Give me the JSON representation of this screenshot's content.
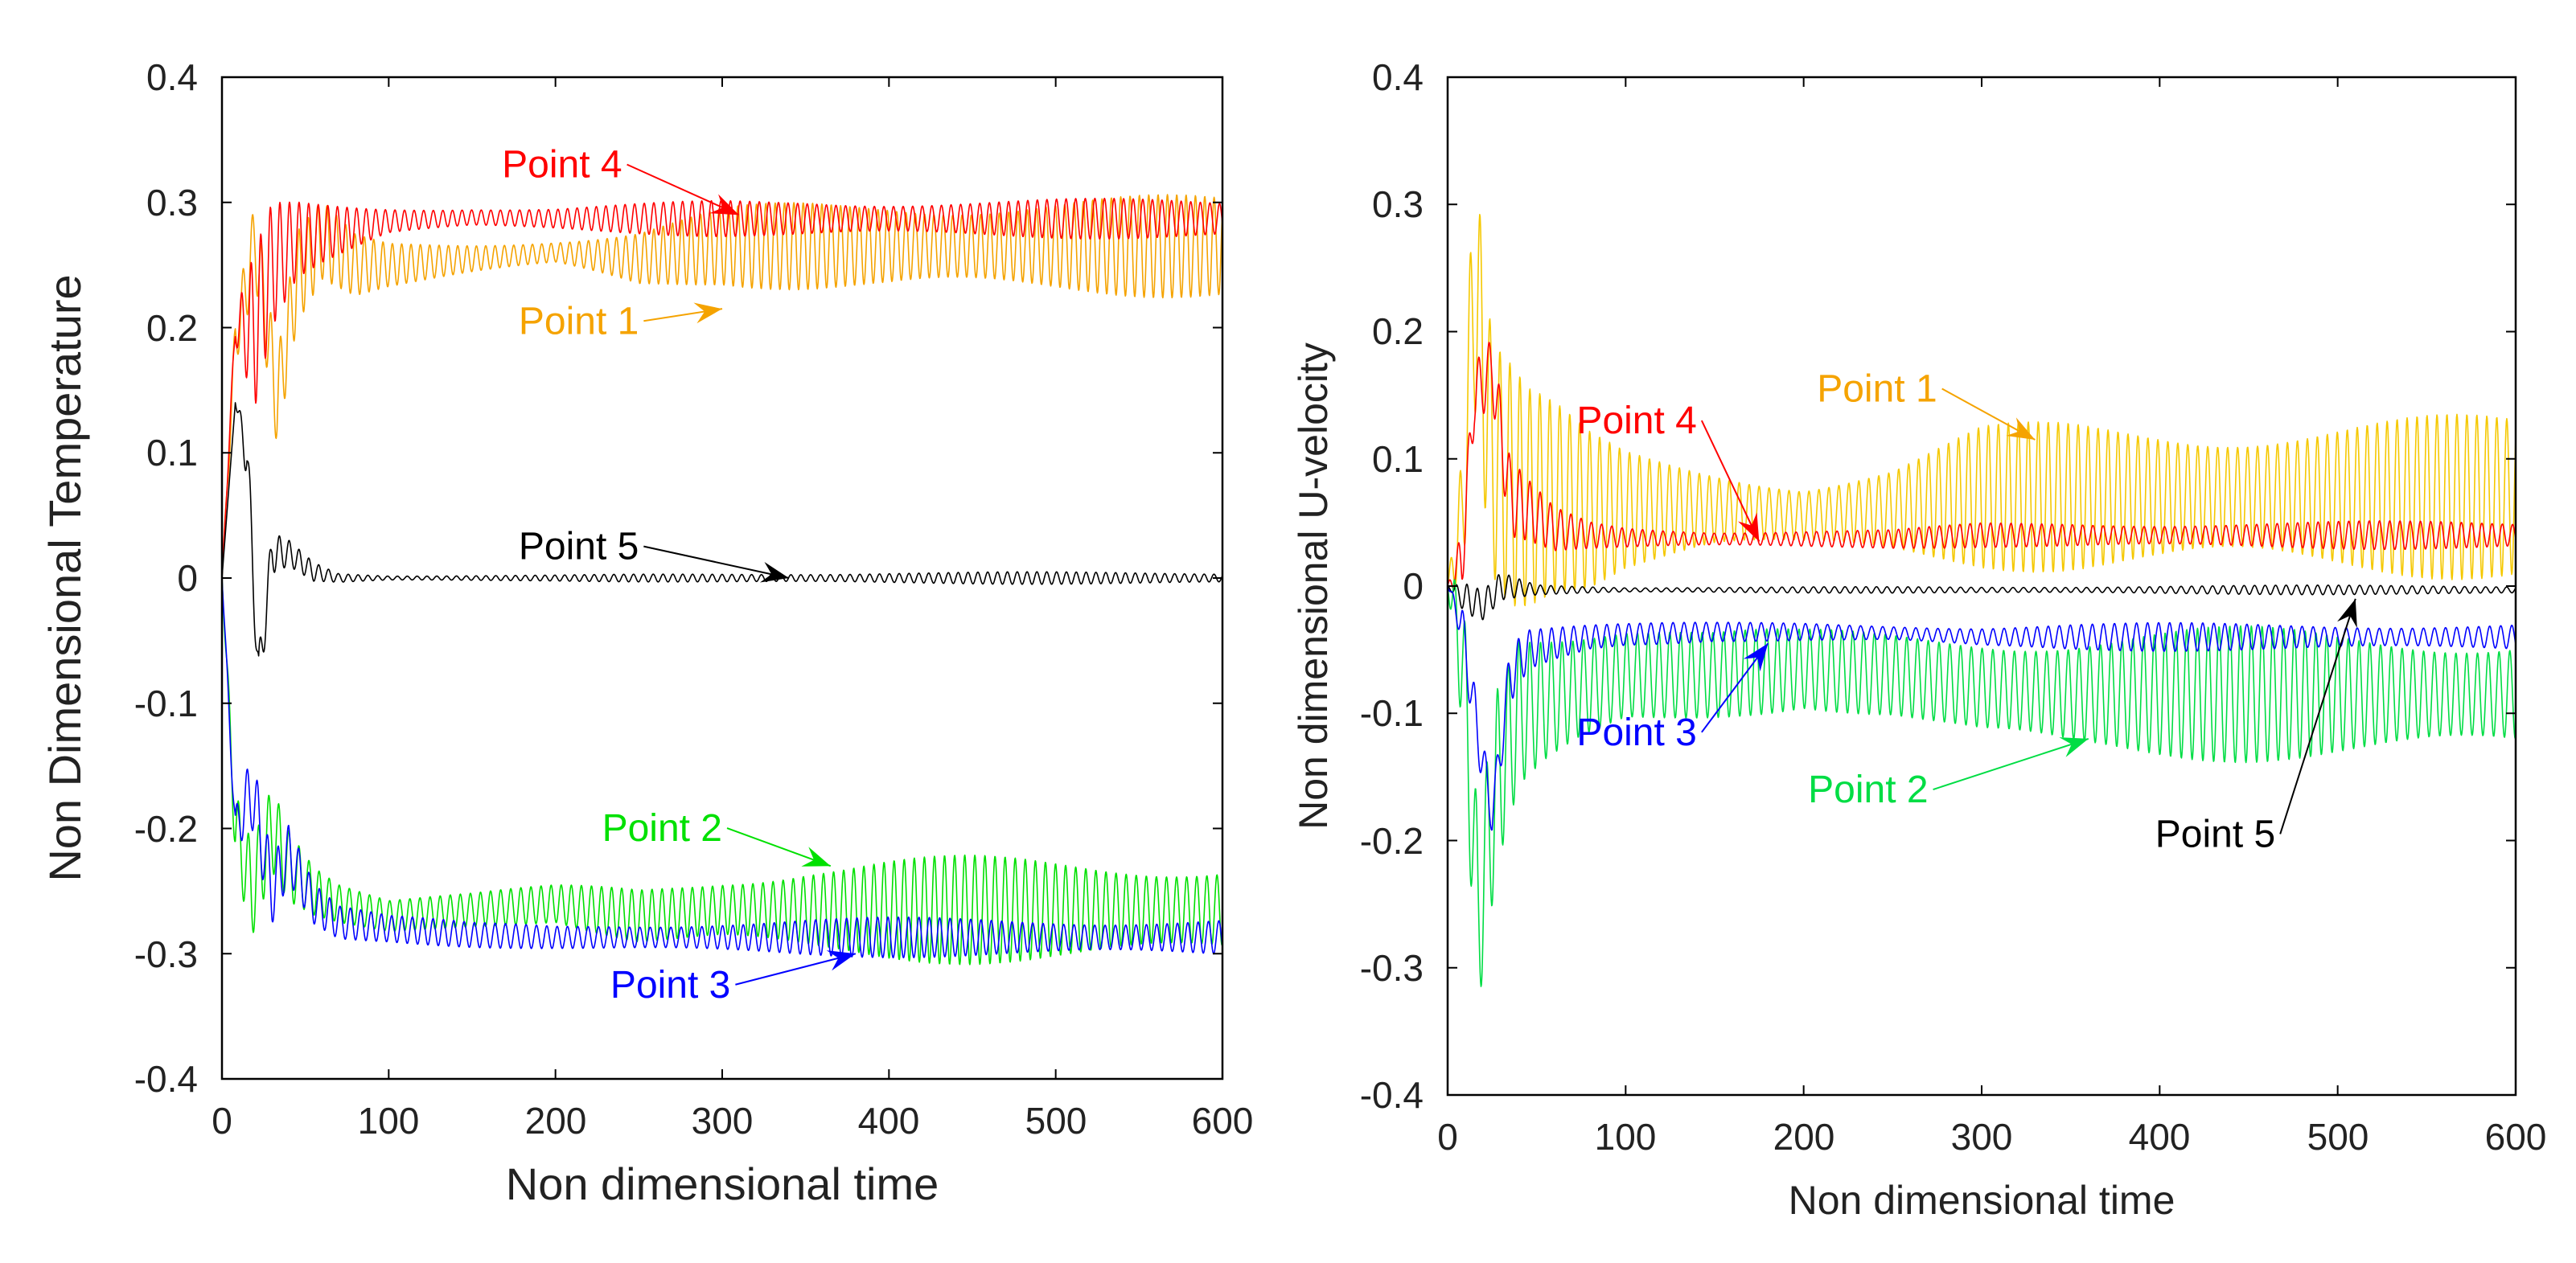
{
  "chart_data": [
    {
      "type": "line",
      "id": "temperature",
      "title": "",
      "xlabel": "Non dimensional time",
      "ylabel": "Non Dimensional Temperature",
      "xlim": [
        0,
        600
      ],
      "ylim": [
        -0.4,
        0.4
      ],
      "xticks": [
        "0",
        "100",
        "200",
        "300",
        "400",
        "500",
        "600"
      ],
      "yticks": [
        "-0.4",
        "-0.3",
        "-0.2",
        "-0.1",
        "0",
        "0.1",
        "0.2",
        "0.3",
        "0.4"
      ],
      "grid": false,
      "series": [
        {
          "name": "Point 1",
          "color": "#f5a300",
          "x": [
            0,
            8,
            20,
            33,
            45,
            60,
            80,
            100,
            150,
            200,
            250,
            300,
            350,
            400,
            450,
            500,
            550,
            600
          ],
          "y": [
            0.0,
            0.19,
            0.27,
            0.14,
            0.24,
            0.27,
            0.25,
            0.25,
            0.255,
            0.26,
            0.255,
            0.265,
            0.265,
            0.265,
            0.265,
            0.265,
            0.265,
            0.265
          ],
          "amp": [
            0,
            0.02,
            0.03,
            0.03,
            0.03,
            0.025,
            0.02,
            0.015,
            0.012,
            0.01,
            0.02,
            0.025,
            0.03,
            0.033,
            0.033,
            0.033,
            0.033,
            0.033
          ]
        },
        {
          "name": "Point 4",
          "color": "#ff0000",
          "x": [
            0,
            8,
            20,
            30,
            45,
            60,
            80,
            100,
            150,
            200,
            250,
            300,
            350,
            400,
            450,
            500,
            550,
            600
          ],
          "y": [
            0.0,
            0.2,
            0.2,
            0.25,
            0.27,
            0.275,
            0.28,
            0.285,
            0.288,
            0.287,
            0.287,
            0.287,
            0.287,
            0.287,
            0.287,
            0.287,
            0.287,
            0.287
          ],
          "amp": [
            0,
            0.01,
            0.05,
            0.04,
            0.025,
            0.02,
            0.015,
            0.01,
            0.008,
            0.008,
            0.01,
            0.012,
            0.013,
            0.013,
            0.013,
            0.013,
            0.013,
            0.013
          ]
        },
        {
          "name": "Point 5",
          "color": "#000000",
          "x": [
            0,
            8,
            15,
            22,
            30,
            40,
            55,
            70,
            100,
            200,
            300,
            400,
            500,
            600
          ],
          "y": [
            0.0,
            0.14,
            0.1,
            -0.08,
            0.02,
            0.02,
            0.005,
            0.0,
            0.0,
            0.0,
            0.0,
            0.0,
            0.0,
            0.0
          ],
          "amp": [
            0,
            0.0,
            0.02,
            0.02,
            0.015,
            0.01,
            0.008,
            0.004,
            0.002,
            0.002,
            0.003,
            0.004,
            0.004,
            0.004
          ]
        },
        {
          "name": "Point 2",
          "color": "#00e000",
          "x": [
            0,
            8,
            18,
            30,
            40,
            55,
            70,
            100,
            150,
            200,
            250,
            300,
            350,
            400,
            450,
            500,
            550,
            600
          ],
          "y": [
            0.0,
            -0.2,
            -0.25,
            -0.2,
            -0.23,
            -0.25,
            -0.26,
            -0.27,
            -0.265,
            -0.26,
            -0.27,
            -0.265,
            -0.265,
            -0.265,
            -0.265,
            -0.265,
            -0.265,
            -0.265
          ],
          "amp": [
            0,
            0.03,
            0.04,
            0.04,
            0.035,
            0.025,
            0.02,
            0.015,
            0.012,
            0.012,
            0.02,
            0.025,
            0.033,
            0.035,
            0.035,
            0.035,
            0.035,
            0.035
          ]
        },
        {
          "name": "Point 3",
          "color": "#0000ff",
          "x": [
            0,
            8,
            18,
            30,
            40,
            55,
            70,
            100,
            150,
            200,
            250,
            300,
            350,
            400,
            450,
            500,
            550,
            600
          ],
          "y": [
            0.0,
            -0.2,
            -0.17,
            -0.25,
            -0.22,
            -0.26,
            -0.275,
            -0.28,
            -0.285,
            -0.287,
            -0.287,
            -0.287,
            -0.287,
            -0.287,
            -0.287,
            -0.287,
            -0.287,
            -0.287
          ],
          "amp": [
            0,
            0.02,
            0.04,
            0.035,
            0.03,
            0.02,
            0.015,
            0.01,
            0.008,
            0.008,
            0.01,
            0.012,
            0.013,
            0.013,
            0.013,
            0.013,
            0.013,
            0.013
          ]
        }
      ],
      "annotations": [
        {
          "text": "Point 4",
          "color": "#ff0000",
          "tx": 240,
          "ty": 0.32,
          "ax": 310,
          "ay": 0.29
        },
        {
          "text": "Point 1",
          "color": "#f5a300",
          "tx": 250,
          "ty": 0.195,
          "ax": 300,
          "ay": 0.215
        },
        {
          "text": "Point 5",
          "color": "#000000",
          "tx": 250,
          "ty": 0.015,
          "ax": 340,
          "ay": 0.0
        },
        {
          "text": "Point 2",
          "color": "#00e000",
          "tx": 300,
          "ty": -0.21,
          "ax": 365,
          "ay": -0.23
        },
        {
          "text": "Point 3",
          "color": "#0000ff",
          "tx": 305,
          "ty": -0.335,
          "ax": 380,
          "ay": -0.3
        }
      ]
    },
    {
      "type": "line",
      "id": "u-velocity",
      "title": "",
      "xlabel": "Non dimensional time",
      "ylabel": "Non dimensional U-velocity",
      "xlim": [
        0,
        600
      ],
      "ylim": [
        -0.4,
        0.4
      ],
      "xticks": [
        "0",
        "100",
        "200",
        "300",
        "400",
        "500",
        "600"
      ],
      "yticks": [
        "-0.4",
        "-0.3",
        "-0.2",
        "-0.1",
        "0",
        "0.1",
        "0.2",
        "0.3",
        "0.4"
      ],
      "grid": false,
      "series": [
        {
          "name": "Point 1",
          "color": "#f5c800",
          "x": [
            0,
            8,
            15,
            25,
            35,
            45,
            60,
            80,
            100,
            150,
            200,
            250,
            300,
            350,
            400,
            450,
            500,
            550,
            600
          ],
          "y": [
            0.0,
            0.05,
            0.24,
            0.1,
            0.08,
            0.07,
            0.07,
            0.06,
            0.06,
            0.06,
            0.055,
            0.06,
            0.07,
            0.07,
            0.07,
            0.07,
            0.07,
            0.07,
            0.07
          ],
          "amp": [
            0,
            0.05,
            0.09,
            0.08,
            0.08,
            0.07,
            0.06,
            0.05,
            0.04,
            0.03,
            0.025,
            0.03,
            0.045,
            0.05,
            0.052,
            0.052,
            0.052,
            0.052,
            0.052
          ]
        },
        {
          "name": "Point 4",
          "color": "#ff0000",
          "x": [
            0,
            8,
            15,
            25,
            35,
            45,
            60,
            80,
            100,
            150,
            200,
            250,
            300,
            350,
            400,
            450,
            500,
            550,
            600
          ],
          "y": [
            0.0,
            0.02,
            0.15,
            0.17,
            0.07,
            0.06,
            0.045,
            0.04,
            0.038,
            0.037,
            0.037,
            0.037,
            0.04,
            0.04,
            0.04,
            0.04,
            0.04,
            0.04,
            0.04
          ],
          "amp": [
            0,
            0.02,
            0.02,
            0.02,
            0.025,
            0.02,
            0.015,
            0.01,
            0.008,
            0.006,
            0.006,
            0.006,
            0.008,
            0.009,
            0.009,
            0.009,
            0.009,
            0.009,
            0.009
          ]
        },
        {
          "name": "Point 5",
          "color": "#000000",
          "x": [
            0,
            10,
            20,
            30,
            50,
            100,
            200,
            300,
            400,
            500,
            600
          ],
          "y": [
            0.0,
            -0.01,
            -0.015,
            0.0,
            -0.003,
            -0.003,
            -0.003,
            -0.003,
            -0.003,
            -0.003,
            -0.003
          ],
          "amp": [
            0,
            0.01,
            0.01,
            0.01,
            0.004,
            0.002,
            0.002,
            0.002,
            0.003,
            0.003,
            0.003
          ]
        },
        {
          "name": "Point 2",
          "color": "#00dd44",
          "x": [
            0,
            8,
            17,
            28,
            40,
            55,
            75,
            100,
            150,
            200,
            250,
            300,
            350,
            400,
            450,
            500,
            550,
            600
          ],
          "y": [
            0.0,
            -0.05,
            -0.26,
            -0.15,
            -0.1,
            -0.09,
            -0.08,
            -0.07,
            -0.07,
            -0.065,
            -0.07,
            -0.08,
            -0.085,
            -0.085,
            -0.085,
            -0.085,
            -0.085,
            -0.085
          ],
          "amp": [
            0,
            0.06,
            0.08,
            0.08,
            0.07,
            0.06,
            0.05,
            0.04,
            0.03,
            0.025,
            0.03,
            0.04,
            0.043,
            0.043,
            0.043,
            0.043,
            0.043,
            0.043
          ]
        },
        {
          "name": "Point 3",
          "color": "#0000ff",
          "x": [
            0,
            8,
            15,
            25,
            35,
            45,
            60,
            80,
            100,
            150,
            200,
            250,
            300,
            350,
            400,
            450,
            500,
            550,
            600
          ],
          "y": [
            0.0,
            -0.03,
            -0.1,
            -0.18,
            -0.07,
            -0.05,
            -0.045,
            -0.04,
            -0.038,
            -0.036,
            -0.036,
            -0.037,
            -0.04,
            -0.04,
            -0.04,
            -0.04,
            -0.04,
            -0.04,
            -0.04
          ],
          "amp": [
            0,
            0.02,
            0.03,
            0.02,
            0.03,
            0.02,
            0.015,
            0.01,
            0.008,
            0.006,
            0.006,
            0.006,
            0.008,
            0.009,
            0.009,
            0.009,
            0.009,
            0.009,
            0.009
          ]
        }
      ],
      "annotations": [
        {
          "text": "Point 1",
          "color": "#f5a300",
          "tx": 275,
          "ty": 0.145,
          "ax": 330,
          "ay": 0.115
        },
        {
          "text": "Point 4",
          "color": "#ff0000",
          "tx": 140,
          "ty": 0.12,
          "ax": 175,
          "ay": 0.035
        },
        {
          "text": "Point 3",
          "color": "#0000ff",
          "tx": 140,
          "ty": -0.125,
          "ax": 180,
          "ay": -0.045
        },
        {
          "text": "Point 2",
          "color": "#00dd44",
          "tx": 270,
          "ty": -0.17,
          "ax": 360,
          "ay": -0.12
        },
        {
          "text": "Point 5",
          "color": "#000000",
          "tx": 465,
          "ty": -0.205,
          "ax": 510,
          "ay": -0.01
        }
      ]
    }
  ]
}
